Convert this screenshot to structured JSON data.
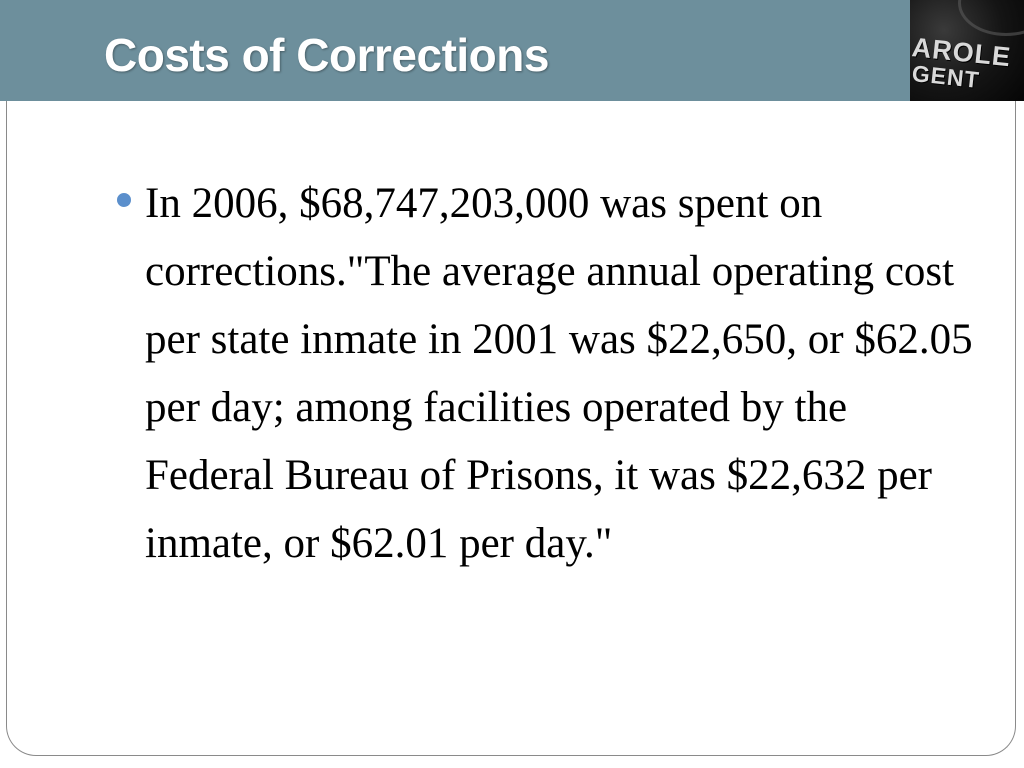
{
  "slide": {
    "title": "Costs of Corrections",
    "header_color": "#6d8f9c",
    "bullet_color": "#5b8fcc",
    "badge": {
      "line1": "AROLE",
      "line2": "GENT"
    },
    "bullets": [
      {
        "text": "In 2006, $68,747,203,000 was spent on corrections.\"The average annual operating cost per state inmate in 2001 was $22,650, or $62.05 per day; among facilities operated by the Federal Bureau of Prisons, it was $22,632 per inmate, or $62.01 per day.\""
      }
    ]
  }
}
